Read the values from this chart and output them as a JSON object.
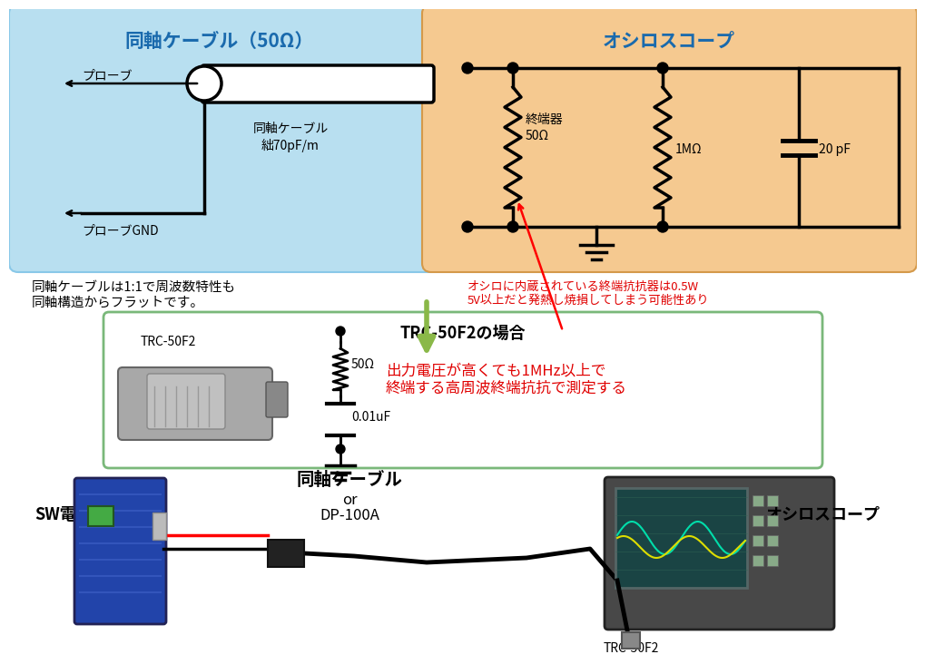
{
  "coax_box_title": "同軸ケーブル（50Ω）",
  "scope_box_title": "オシロスコープ",
  "probe_label": "プローブ",
  "probe_gnd_label": "プローブGND",
  "coax_cable_label": "同軸ケーブル",
  "coax_cap_label": "絀70pF/m",
  "terminator_label": "終端器",
  "terminator_val": "50Ω",
  "resistor2_val": "1MΩ",
  "capacitor_val": "20 pF",
  "warning_text": "オシロに内蔵されている終端抗抗器は0.5W\n5V以上だと発熱し焼損してしまう可能性あり",
  "coax_note": "同軸ケーブルは1:1で周波数特性も\n同軸構造からフラットです。",
  "trc_section_title": "TRC-50F2の場合",
  "trc_label": "TRC-50F2",
  "trc_r_val": "50Ω",
  "trc_c_val": "0.01uF",
  "trc_note": "出力電圧が高くても1MHz以上で\n終端する高周波終端抗抗で測定する",
  "bottom_cable_label": "同軸ケーブル",
  "bottom_or": "or",
  "bottom_dp": "DP-100A",
  "bottom_sw": "SW電源",
  "bottom_scope": "オシロスコープ",
  "bottom_trc": "TRC-50F2",
  "bg_color": "#ffffff",
  "coax_box_color": "#b8dff0",
  "scope_box_color": "#f5c990",
  "trc_box_border": "#7ab87a",
  "title_color": "#1a6aad",
  "red_text_color": "#e00000",
  "arrow_green": "#8ab848"
}
